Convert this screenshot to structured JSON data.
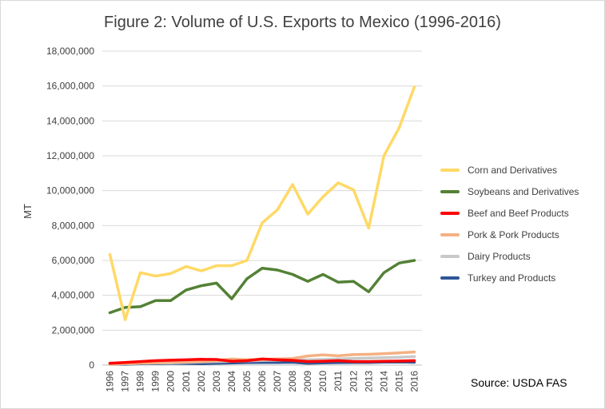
{
  "chart_data": {
    "type": "line",
    "title": "Figure 2: Volume of U.S. Exports to Mexico (1996-2016)",
    "xlabel": "",
    "ylabel": "MT",
    "ylim": [
      0,
      18000000
    ],
    "y_ticks": [
      "0",
      "2,000,000",
      "4,000,000",
      "6,000,000",
      "8,000,000",
      "10,000,000",
      "12,000,000",
      "14,000,000",
      "16,000,000",
      "18,000,000"
    ],
    "categories": [
      "1996",
      "1997",
      "1998",
      "1999",
      "2000",
      "2001",
      "2002",
      "2003",
      "2004",
      "2005",
      "2006",
      "2007",
      "2008",
      "2009",
      "2010",
      "2011",
      "2012",
      "2013",
      "2014",
      "2015",
      "2016"
    ],
    "grid": true,
    "legend_position": "right",
    "series": [
      {
        "name": "Corn and Derivatives",
        "color": "#ffd966",
        "values": [
          6350000,
          2600000,
          5300000,
          5100000,
          5250000,
          5650000,
          5400000,
          5700000,
          5700000,
          6000000,
          8150000,
          8900000,
          10350000,
          8650000,
          9650000,
          10450000,
          10050000,
          7850000,
          12000000,
          13600000,
          15950000
        ]
      },
      {
        "name": "Soybeans and Derivatives",
        "color": "#538135",
        "values": [
          3000000,
          3300000,
          3350000,
          3700000,
          3700000,
          4300000,
          4550000,
          4700000,
          3800000,
          4950000,
          5550000,
          5450000,
          5200000,
          4800000,
          5200000,
          4750000,
          4800000,
          4200000,
          5300000,
          5850000,
          6000000
        ]
      },
      {
        "name": "Beef and Beef Products",
        "color": "#ff0000",
        "values": [
          100000,
          150000,
          200000,
          250000,
          280000,
          300000,
          330000,
          320000,
          220000,
          250000,
          350000,
          300000,
          270000,
          200000,
          220000,
          250000,
          200000,
          200000,
          220000,
          230000,
          250000
        ]
      },
      {
        "name": "Pork & Pork Products",
        "color": "#f4b183",
        "values": [
          50000,
          80000,
          100000,
          130000,
          160000,
          180000,
          200000,
          250000,
          350000,
          300000,
          320000,
          350000,
          380000,
          520000,
          580000,
          530000,
          600000,
          620000,
          650000,
          700000,
          750000
        ]
      },
      {
        "name": "Dairy Products",
        "color": "#c9c9c9",
        "values": [
          70000,
          80000,
          100000,
          120000,
          130000,
          150000,
          180000,
          200000,
          220000,
          240000,
          260000,
          280000,
          300000,
          300000,
          320000,
          350000,
          380000,
          400000,
          420000,
          450000,
          480000
        ]
      },
      {
        "name": "Turkey and Products",
        "color": "#2f5597",
        "values": [
          50000,
          50000,
          80000,
          90000,
          100000,
          90000,
          80000,
          100000,
          120000,
          140000,
          150000,
          150000,
          160000,
          100000,
          130000,
          140000,
          150000,
          150000,
          170000,
          180000,
          160000
        ]
      }
    ]
  },
  "source_note": "Source: USDA FAS"
}
